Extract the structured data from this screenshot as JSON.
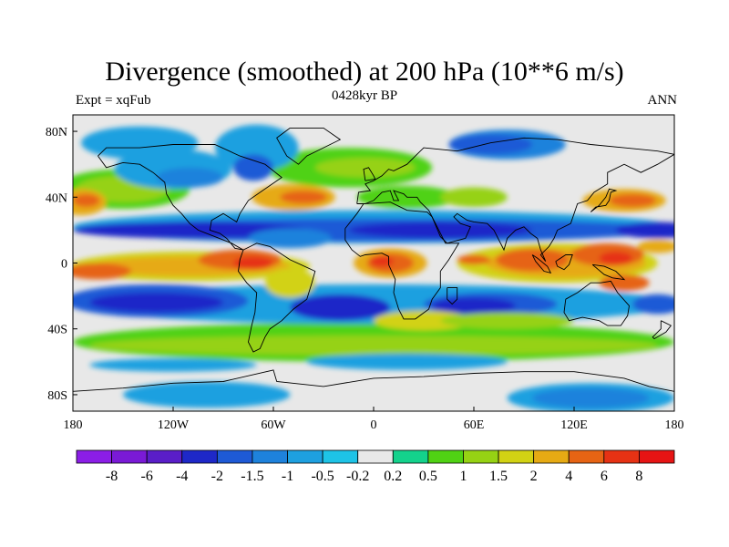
{
  "chart_data": {
    "type": "heatmap",
    "title": "Divergence (smoothed) at 200 hPa (10**6 m/s)",
    "left_label": "Expt = xqFub",
    "center_label": "0428kyr BP",
    "right_label": "ANN",
    "x_ticks": [
      "180",
      "120W",
      "60W",
      "0",
      "60E",
      "120E",
      "180"
    ],
    "x_tick_values": [
      -180,
      -120,
      -60,
      0,
      60,
      120,
      180
    ],
    "y_ticks": [
      "80N",
      "40N",
      "0",
      "40S",
      "80S"
    ],
    "y_tick_values": [
      80,
      40,
      0,
      -40,
      -80
    ],
    "xlim": [
      -180,
      180
    ],
    "ylim": [
      -90,
      90
    ],
    "colorbar": {
      "levels": [
        "-8",
        "-6",
        "-4",
        "-2",
        "-1.5",
        "-1",
        "-0.5",
        "-0.2",
        "0.2",
        "0.5",
        "1",
        "1.5",
        "2",
        "4",
        "6",
        "8"
      ],
      "colors": [
        "#8b1ee6",
        "#7a1ad6",
        "#5a1ec8",
        "#1e28c8",
        "#1e5ad6",
        "#1e82dc",
        "#1ea0e0",
        "#1ec3e6",
        "#e8e8e8",
        "#14d28c",
        "#50d214",
        "#96d214",
        "#d2d214",
        "#e6aa14",
        "#e66414",
        "#e63214",
        "#e61414"
      ]
    },
    "features": [
      {
        "name": "tropical-convergence-band-north",
        "level": "-4",
        "lon_range": [
          -180,
          180
        ],
        "lat_range": [
          10,
          28
        ]
      },
      {
        "name": "tropical-convergence-band-south",
        "level": "-4",
        "lon_range": [
          -180,
          180
        ],
        "lat_range": [
          -35,
          -15
        ]
      },
      {
        "name": "equatorial-divergence-pacific-east",
        "level": "4",
        "lon_range": [
          -180,
          -60
        ],
        "lat_range": [
          -12,
          8
        ]
      },
      {
        "name": "equatorial-divergence-africa",
        "level": "4",
        "lon_range": [
          -5,
          30
        ],
        "lat_range": [
          -10,
          8
        ]
      },
      {
        "name": "equatorial-divergence-maritime",
        "level": "6",
        "lon_range": [
          70,
          170
        ],
        "lat_range": [
          -15,
          15
        ]
      },
      {
        "name": "midlatitude-divergence-north-atlantic",
        "level": "2",
        "lon_range": [
          -70,
          -20
        ],
        "lat_range": [
          30,
          50
        ]
      },
      {
        "name": "midlatitude-divergence-north-pacific",
        "level": "2",
        "lon_range": [
          140,
          180
        ],
        "lat_range": [
          30,
          48
        ]
      }
    ]
  }
}
